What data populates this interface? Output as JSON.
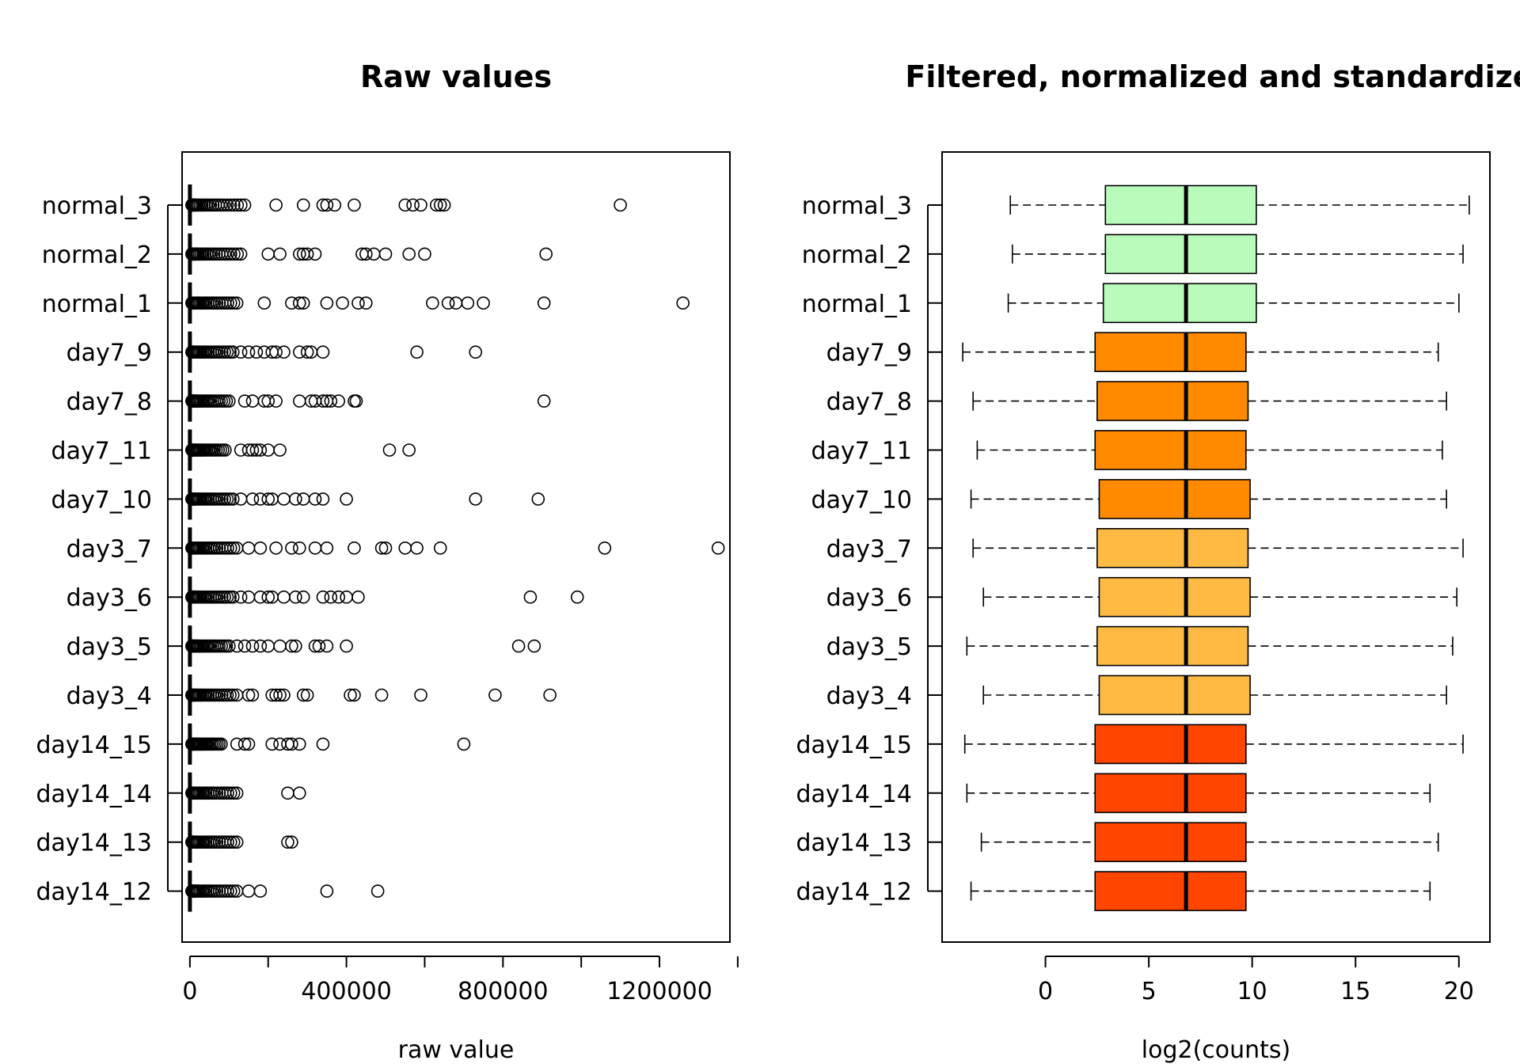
{
  "chart_data": [
    {
      "type": "scatter",
      "title": "Raw values",
      "xlabel": "raw value",
      "ylabel": "",
      "categories": [
        "normal_3",
        "normal_2",
        "normal_1",
        "day7_9",
        "day7_8",
        "day7_11",
        "day7_10",
        "day3_7",
        "day3_6",
        "day3_5",
        "day3_4",
        "day14_15",
        "day14_14",
        "day14_13",
        "day14_12"
      ],
      "xlim": [
        -20000,
        1380000
      ],
      "xticks": [
        0,
        400000,
        800000,
        1200000
      ],
      "xtick_labels": [
        "0",
        "400000",
        "800000",
        "1200000"
      ],
      "median": 0,
      "box_upper": 2000,
      "whisker_high": 5000,
      "outliers_note": "points beyond whiskers drawn as open circles; dense cluster near 0",
      "dense_cluster_max": [
        140000,
        130000,
        120000,
        110000,
        100000,
        90000,
        110000,
        120000,
        110000,
        100000,
        110000,
        80000,
        120000,
        120000,
        120000
      ],
      "outliers": [
        [
          220000,
          290000,
          340000,
          350000,
          370000,
          420000,
          550000,
          570000,
          590000,
          630000,
          640000,
          650000,
          1100000
        ],
        [
          200000,
          230000,
          280000,
          290000,
          300000,
          320000,
          440000,
          450000,
          470000,
          500000,
          560000,
          600000,
          910000
        ],
        [
          190000,
          260000,
          280000,
          290000,
          350000,
          390000,
          430000,
          450000,
          620000,
          660000,
          680000,
          710000,
          750000,
          905000,
          1260000
        ],
        [
          130000,
          150000,
          170000,
          190000,
          210000,
          220000,
          240000,
          280000,
          300000,
          310000,
          340000,
          580000,
          730000
        ],
        [
          140000,
          160000,
          190000,
          200000,
          220000,
          280000,
          310000,
          320000,
          340000,
          350000,
          360000,
          380000,
          420000,
          425000,
          905000
        ],
        [
          130000,
          150000,
          160000,
          170000,
          180000,
          200000,
          230000,
          510000,
          560000
        ],
        [
          130000,
          160000,
          180000,
          200000,
          210000,
          240000,
          270000,
          290000,
          320000,
          340000,
          400000,
          730000,
          890000
        ],
        [
          150000,
          180000,
          220000,
          260000,
          280000,
          320000,
          350000,
          420000,
          490000,
          500000,
          550000,
          580000,
          640000,
          1060000,
          1350000
        ],
        [
          130000,
          150000,
          180000,
          200000,
          210000,
          240000,
          270000,
          290000,
          340000,
          360000,
          380000,
          400000,
          430000,
          870000,
          990000
        ],
        [
          120000,
          140000,
          160000,
          180000,
          200000,
          230000,
          260000,
          270000,
          320000,
          330000,
          350000,
          400000,
          840000,
          880000
        ],
        [
          120000,
          150000,
          160000,
          210000,
          220000,
          230000,
          240000,
          290000,
          300000,
          410000,
          420000,
          490000,
          590000,
          780000,
          920000
        ],
        [
          120000,
          140000,
          150000,
          210000,
          230000,
          250000,
          260000,
          280000,
          340000,
          700000
        ],
        [
          250000,
          280000
        ],
        [
          250000,
          260000
        ],
        [
          150000,
          180000,
          350000,
          480000
        ]
      ]
    },
    {
      "type": "box",
      "title": "Filtered, normalized and standardize",
      "xlabel": "log2(counts)",
      "ylabel": "",
      "categories": [
        "normal_3",
        "normal_2",
        "normal_1",
        "day7_9",
        "day7_8",
        "day7_11",
        "day7_10",
        "day3_7",
        "day3_6",
        "day3_5",
        "day3_4",
        "day14_15",
        "day14_14",
        "day14_13",
        "day14_12"
      ],
      "xlim": [
        -5,
        21.5
      ],
      "xticks": [
        0,
        5,
        10,
        15,
        20
      ],
      "xtick_labels": [
        "0",
        "5",
        "10",
        "15",
        "20"
      ],
      "boxes": [
        {
          "min": -1.7,
          "q1": 2.9,
          "median": 6.8,
          "q3": 10.2,
          "max": 20.5
        },
        {
          "min": -1.6,
          "q1": 2.9,
          "median": 6.8,
          "q3": 10.2,
          "max": 20.2
        },
        {
          "min": -1.8,
          "q1": 2.8,
          "median": 6.8,
          "q3": 10.2,
          "max": 20.0
        },
        {
          "min": -4.0,
          "q1": 2.4,
          "median": 6.8,
          "q3": 9.7,
          "max": 19.0
        },
        {
          "min": -3.5,
          "q1": 2.5,
          "median": 6.8,
          "q3": 9.8,
          "max": 19.4
        },
        {
          "min": -3.3,
          "q1": 2.4,
          "median": 6.8,
          "q3": 9.7,
          "max": 19.2
        },
        {
          "min": -3.6,
          "q1": 2.6,
          "median": 6.8,
          "q3": 9.9,
          "max": 19.4
        },
        {
          "min": -3.5,
          "q1": 2.5,
          "median": 6.8,
          "q3": 9.8,
          "max": 20.2
        },
        {
          "min": -3.0,
          "q1": 2.6,
          "median": 6.8,
          "q3": 9.9,
          "max": 19.9
        },
        {
          "min": -3.8,
          "q1": 2.5,
          "median": 6.8,
          "q3": 9.8,
          "max": 19.7
        },
        {
          "min": -3.0,
          "q1": 2.6,
          "median": 6.8,
          "q3": 9.9,
          "max": 19.4
        },
        {
          "min": -3.9,
          "q1": 2.4,
          "median": 6.8,
          "q3": 9.7,
          "max": 20.2
        },
        {
          "min": -3.8,
          "q1": 2.4,
          "median": 6.8,
          "q3": 9.7,
          "max": 18.6
        },
        {
          "min": -3.1,
          "q1": 2.4,
          "median": 6.8,
          "q3": 9.7,
          "max": 19.0
        },
        {
          "min": -3.6,
          "q1": 2.4,
          "median": 6.8,
          "q3": 9.7,
          "max": 18.6
        }
      ],
      "group_colors": [
        "#b9fbbb",
        "#b9fbbb",
        "#b9fbbb",
        "#ff8a00",
        "#ff8a00",
        "#ff8a00",
        "#ff8a00",
        "#ffba44",
        "#ffba44",
        "#ffba44",
        "#ffba44",
        "#ff4500",
        "#ff4500",
        "#ff4500",
        "#ff4500"
      ]
    }
  ]
}
